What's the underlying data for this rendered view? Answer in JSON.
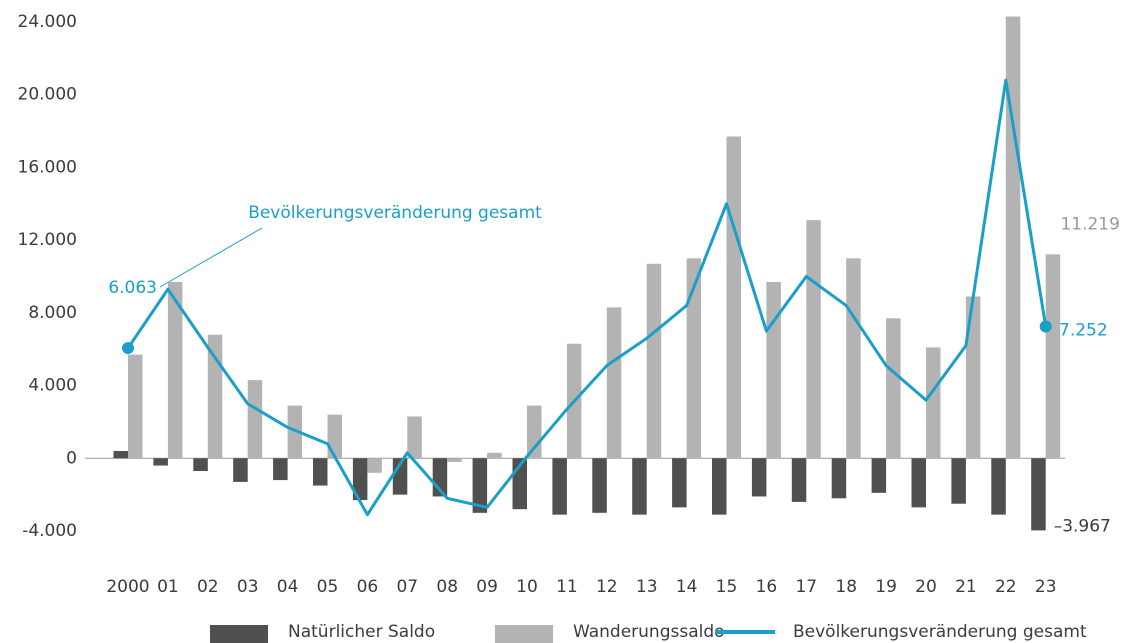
{
  "chart_data": {
    "type": "bar-line",
    "categories": [
      "2000",
      "01",
      "02",
      "03",
      "04",
      "05",
      "06",
      "07",
      "08",
      "09",
      "10",
      "11",
      "12",
      "13",
      "14",
      "15",
      "16",
      "17",
      "18",
      "19",
      "20",
      "21",
      "22",
      "23"
    ],
    "series": [
      {
        "name": "Natürlicher Saldo",
        "type": "bar",
        "color": "#505050",
        "values": [
          400,
          -400,
          -700,
          -1300,
          -1200,
          -1500,
          -2300,
          -2000,
          -2100,
          -3000,
          -2800,
          -3100,
          -3000,
          -3100,
          -2700,
          -3100,
          -2100,
          -2400,
          -2200,
          -1900,
          -2700,
          -2500,
          -3100,
          -3967
        ],
        "value_labels": [
          null,
          null,
          null,
          null,
          null,
          null,
          null,
          null,
          null,
          null,
          null,
          null,
          null,
          null,
          null,
          null,
          null,
          null,
          null,
          null,
          null,
          null,
          null,
          "–3.967"
        ]
      },
      {
        "name": "Wanderungssaldo",
        "type": "bar",
        "color": "#b3b3b3",
        "values": [
          5700,
          9700,
          6800,
          4300,
          2900,
          2400,
          -800,
          2300,
          -200,
          300,
          2900,
          6300,
          8300,
          10700,
          11000,
          17700,
          9700,
          13100,
          11000,
          7700,
          6100,
          8900,
          24300,
          11219
        ],
        "value_labels": [
          null,
          null,
          null,
          null,
          null,
          null,
          null,
          null,
          null,
          null,
          null,
          null,
          null,
          null,
          null,
          null,
          null,
          null,
          null,
          null,
          null,
          null,
          null,
          "11.219"
        ]
      },
      {
        "name": "Bevölkerungsveränderung gesamt",
        "type": "line",
        "color": "#1a9fc9",
        "values": [
          6063,
          9300,
          6100,
          3000,
          1700,
          800,
          -3100,
          300,
          -2200,
          -2700,
          100,
          2700,
          5100,
          6600,
          8400,
          14000,
          7000,
          10000,
          8400,
          5100,
          3200,
          6200,
          20800,
          7252
        ],
        "value_labels": [
          "6.063",
          null,
          null,
          null,
          null,
          null,
          null,
          null,
          null,
          null,
          null,
          null,
          null,
          null,
          null,
          null,
          null,
          null,
          null,
          null,
          null,
          null,
          null,
          "7.252"
        ]
      }
    ],
    "annotation": "Bevölkerungsveränderung gesamt",
    "ylim": [
      -4000,
      24000
    ],
    "yticks": [
      {
        "value": -4000,
        "label": "-4.000"
      },
      0,
      {
        "value": 4000,
        "label": "4.000"
      },
      {
        "value": 8000,
        "label": "8.000"
      },
      {
        "value": 12000,
        "label": "12.000"
      },
      {
        "value": 16000,
        "label": "16.000"
      },
      {
        "value": 20000,
        "label": "20.000"
      },
      {
        "value": 24000,
        "label": "24.000"
      }
    ],
    "grid": false,
    "legend": "bottom"
  }
}
